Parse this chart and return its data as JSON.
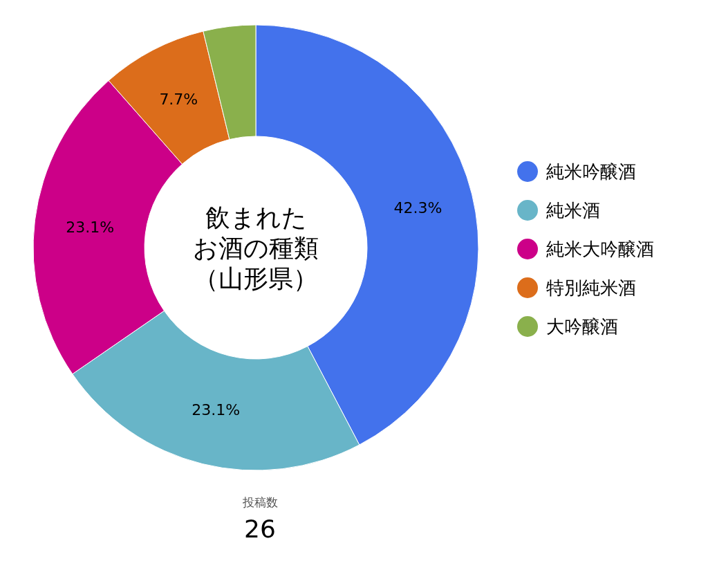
{
  "chart_data": {
    "type": "donut",
    "title": "飲まれたお酒の種類",
    "subtitle": "（山形県）",
    "categories": [
      "純米吟醸酒",
      "純米酒",
      "純米大吟醸酒",
      "特別純米酒",
      "大吟醸酒"
    ],
    "values": [
      42.3,
      23.1,
      23.1,
      7.7,
      3.8
    ],
    "colors": [
      "#4372ec",
      "#68b5c8",
      "#cc0088",
      "#dc6d1b",
      "#8ab04c"
    ],
    "value_labels": [
      "42.3%",
      "23.1%",
      "23.1%",
      "7.7%",
      null
    ],
    "legend": "right",
    "annotations": [
      "投稿数",
      "26"
    ]
  }
}
